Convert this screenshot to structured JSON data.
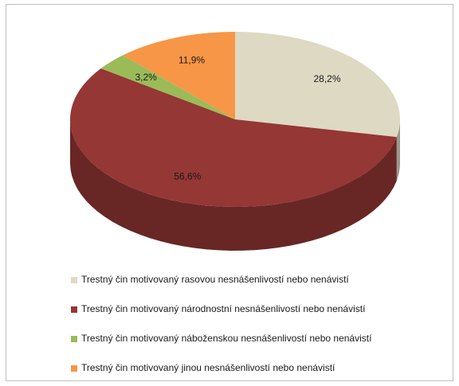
{
  "chart_data": {
    "type": "pie",
    "categories": [
      "Trestný čin motivovaný rasovou nesnášenlivostí nebo nenávistí",
      "Trestný čin motivovaný národnostní nesnášenlivostí nebo nenávistí",
      "Trestný čin motivovaný náboženskou nesnášenlivostí nebo nenávistí",
      "Trestný čin motivovaný jinou nesnášenlivostí nebo nenávistí"
    ],
    "values": [
      28.2,
      56.6,
      3.2,
      11.9
    ],
    "value_labels": [
      "28,2%",
      "56,6%",
      "3,2%",
      "11,9%"
    ],
    "colors": [
      "#ddd9c3",
      "#953735",
      "#9bbb59",
      "#f79646"
    ],
    "legend": "bottom"
  }
}
